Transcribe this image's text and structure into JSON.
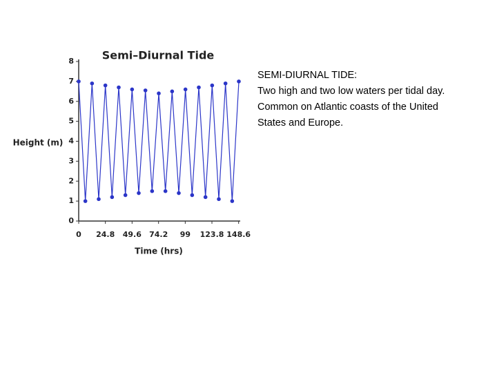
{
  "chart_data": {
    "type": "line",
    "title": "Semi–Diurnal Tide",
    "x_label": "Time (hrs)",
    "y_label": "Height (m)",
    "x": [
      0,
      6.2,
      12.4,
      18.6,
      24.8,
      31,
      37.2,
      43.4,
      49.6,
      55.8,
      62,
      68.2,
      74.4,
      80.6,
      86.8,
      93,
      99.2,
      105.4,
      111.6,
      117.8,
      124,
      130.2,
      136.4,
      142.6,
      148.8
    ],
    "values": [
      7.0,
      1.0,
      6.9,
      1.1,
      6.8,
      1.2,
      6.7,
      1.3,
      6.6,
      1.4,
      6.55,
      1.5,
      6.4,
      1.5,
      6.5,
      1.4,
      6.6,
      1.3,
      6.7,
      1.2,
      6.8,
      1.1,
      6.9,
      1.0,
      7.0
    ],
    "color": "#2b35c8",
    "xlim": [
      0,
      148.8
    ],
    "xticks": [
      0,
      24.8,
      49.6,
      74.2,
      99,
      123.8,
      148.6
    ],
    "ylim": [
      0,
      8
    ],
    "yticks": [
      0,
      1,
      2,
      3,
      4,
      5,
      6,
      7,
      8
    ]
  },
  "text": {
    "heading": "SEMI-DIURNAL TIDE:",
    "lines": [
      "Two high and two low waters per tidal day.",
      "Common on Atlantic coasts of the United",
      "States and Europe."
    ]
  }
}
